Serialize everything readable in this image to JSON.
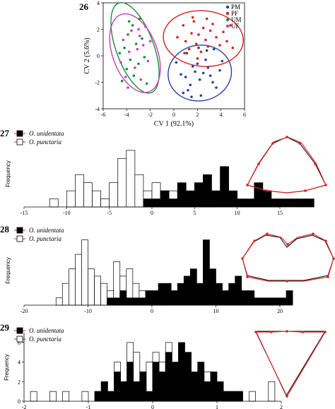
{
  "chart_data": [
    {
      "panel_label": "26",
      "type": "scatter",
      "xlabel": "CV 1 (92.1%)",
      "ylabel": "CV 2 (5.6%)",
      "xlim": [
        -6,
        6
      ],
      "ylim": [
        -4,
        4
      ],
      "xticks": [
        "-6",
        "-4",
        "-2",
        "0",
        "2",
        "4",
        "6"
      ],
      "yticks": [
        "-4",
        "-2",
        "0",
        "2",
        "4"
      ],
      "legend_position": "top-right",
      "series": [
        {
          "name": "PM",
          "color": "#1f3fa8",
          "points": [
            [
              0.2,
              -0.5
            ],
            [
              0.6,
              -1.4
            ],
            [
              1.0,
              -1.6
            ],
            [
              1.2,
              -2.6
            ],
            [
              1.4,
              -2.2
            ],
            [
              1.6,
              -0.8
            ],
            [
              1.8,
              -1.2
            ],
            [
              2.0,
              -0.6
            ],
            [
              2.2,
              -1.8
            ],
            [
              2.5,
              -1.3
            ],
            [
              2.7,
              -0.3
            ],
            [
              2.9,
              -0.9
            ],
            [
              3.1,
              -1.5
            ],
            [
              3.3,
              -2.0
            ],
            [
              3.6,
              -2.4
            ],
            [
              3.9,
              -1.1
            ],
            [
              4.1,
              -0.4
            ],
            [
              2.3,
              -3.0
            ],
            [
              1.5,
              -3.1
            ],
            [
              0.8,
              -2.8
            ],
            [
              2.8,
              0.4
            ],
            [
              3.4,
              0.5
            ],
            [
              1.1,
              0.2
            ],
            [
              2.1,
              0.6
            ]
          ]
        },
        {
          "name": "PF",
          "color": "#d42020",
          "points": [
            [
              0.3,
              1.4
            ],
            [
              0.8,
              2.3
            ],
            [
              1.0,
              1.1
            ],
            [
              1.3,
              0.5
            ],
            [
              1.5,
              1.7
            ],
            [
              1.7,
              2.6
            ],
            [
              1.9,
              0.9
            ],
            [
              2.1,
              1.6
            ],
            [
              2.3,
              0.3
            ],
            [
              2.5,
              2.1
            ],
            [
              2.7,
              1.2
            ],
            [
              2.9,
              0.7
            ],
            [
              3.1,
              1.9
            ],
            [
              3.3,
              2.4
            ],
            [
              3.6,
              1.4
            ],
            [
              3.9,
              0.8
            ],
            [
              4.2,
              1.8
            ],
            [
              4.5,
              1.1
            ],
            [
              4.8,
              2.3
            ],
            [
              5.0,
              0.6
            ],
            [
              1.6,
              2.9
            ],
            [
              2.8,
              2.8
            ],
            [
              0.9,
              0.2
            ],
            [
              2.0,
              -0.2
            ]
          ]
        },
        {
          "name": "UM",
          "color": "#1a8a3a",
          "points": [
            [
              -4.4,
              -1.9
            ],
            [
              -4.2,
              0.6
            ],
            [
              -4.0,
              -1.0
            ],
            [
              -3.9,
              1.6
            ],
            [
              -3.7,
              -0.3
            ],
            [
              -3.5,
              2.3
            ],
            [
              -3.4,
              -1.5
            ],
            [
              -3.2,
              0.9
            ],
            [
              -3.0,
              -0.6
            ],
            [
              -2.9,
              2.8
            ],
            [
              -2.7,
              1.3
            ],
            [
              -2.5,
              -0.1
            ],
            [
              -2.3,
              -2.1
            ],
            [
              -3.8,
              2.6
            ],
            [
              -4.6,
              0.2
            ]
          ]
        },
        {
          "name": "UF",
          "color": "#c040c0",
          "points": [
            [
              -4.5,
              -0.5
            ],
            [
              -4.3,
              1.2
            ],
            [
              -4.1,
              -1.6
            ],
            [
              -3.8,
              0.3
            ],
            [
              -3.6,
              1.9
            ],
            [
              -3.3,
              -0.9
            ],
            [
              -3.1,
              0.5
            ],
            [
              -2.9,
              1.5
            ],
            [
              -2.8,
              -1.8
            ],
            [
              -2.6,
              0.8
            ],
            [
              -2.4,
              2.2
            ],
            [
              -2.2,
              -0.4
            ],
            [
              -2.0,
              1.1
            ],
            [
              -3.9,
              -2.4
            ],
            [
              -3.0,
              2.0
            ]
          ]
        }
      ],
      "ellipses": [
        {
          "group": "PM",
          "color": "#1f3fa8",
          "center": [
            2.2,
            -1.3
          ],
          "rx": 2.7,
          "ry": 2.1,
          "angle": -10
        },
        {
          "group": "PF",
          "color": "#d42020",
          "center": [
            2.5,
            1.3
          ],
          "rx": 3.4,
          "ry": 2.1,
          "angle": 5
        },
        {
          "group": "UM",
          "color": "#1a8a3a",
          "center": [
            -3.3,
            0.6
          ],
          "rx": 1.6,
          "ry": 3.6,
          "angle": -20
        },
        {
          "group": "UF",
          "color": "#c040c0",
          "center": [
            -3.3,
            0.2
          ],
          "rx": 1.9,
          "ry": 3.1,
          "angle": -20
        }
      ]
    },
    {
      "panel_label": "27",
      "type": "bar",
      "ylabel": "Frequency",
      "xlim": [
        -15,
        15
      ],
      "ylim": [
        0,
        9
      ],
      "xticks": [
        "-15",
        "-10",
        "-5",
        "0",
        "5",
        "10",
        "15"
      ],
      "bin_width": 1,
      "series": [
        {
          "name": "O. punctaria",
          "fill": "#ffffff",
          "bins_start": -12,
          "values": [
            1,
            0,
            2,
            4,
            3,
            2,
            1,
            3,
            6,
            7,
            4,
            2,
            3,
            2,
            2,
            1,
            1,
            0,
            1,
            0,
            0,
            0,
            0,
            0,
            0
          ]
        },
        {
          "name": "O. unidentata",
          "fill": "#000000",
          "bins_start": -1,
          "values": [
            1,
            1,
            2,
            1,
            3,
            2,
            3,
            4,
            2,
            5,
            2,
            1,
            1,
            3,
            2,
            1,
            1,
            1,
            1,
            1
          ]
        }
      ],
      "legend": [
        "O. unidentata",
        "O. punctaria"
      ]
    },
    {
      "panel_label": "28",
      "type": "bar",
      "ylabel": "Frequency",
      "xlim": [
        -20,
        20
      ],
      "ylim": [
        0,
        11
      ],
      "xticks": [
        "-20",
        "-10",
        "0",
        "10",
        "20"
      ],
      "bin_width": 1,
      "series": [
        {
          "name": "O. punctaria",
          "fill": "#ffffff",
          "bins_start": -15,
          "values": [
            1,
            3,
            5,
            7,
            9,
            5,
            4,
            3,
            2,
            6,
            4,
            5,
            3,
            2,
            1,
            1,
            1,
            0,
            0,
            0,
            0,
            0,
            0,
            0,
            0,
            0,
            0,
            0,
            0,
            0,
            0,
            0,
            0,
            0
          ]
        },
        {
          "name": "O. unidentata",
          "fill": "#000000",
          "bins_start": -7,
          "values": [
            1,
            1,
            2,
            1,
            1,
            1,
            2,
            2,
            3,
            3,
            2,
            3,
            4,
            5,
            3,
            9,
            5,
            3,
            2,
            3,
            4,
            2,
            2,
            1,
            1,
            1,
            1,
            1,
            2
          ]
        }
      ],
      "legend": [
        "O. unidentata",
        "O. punctaria"
      ]
    },
    {
      "panel_label": "29",
      "type": "bar",
      "ylabel": "Frequency",
      "xlim": [
        -2,
        2
      ],
      "ylim": [
        0,
        7
      ],
      "xticks": [
        "-2",
        "-1",
        "0",
        "1",
        "2"
      ],
      "yticks": [
        "0",
        "2",
        "4",
        "6"
      ],
      "bin_width": 0.1,
      "series": [
        {
          "name": "O. punctaria",
          "fill": "#ffffff",
          "bins_start": -1.9,
          "values": [
            1,
            0,
            0,
            1,
            0,
            1,
            0,
            0,
            1,
            0,
            1,
            2,
            1,
            4,
            2,
            6,
            5,
            3,
            4,
            5,
            4,
            6,
            3,
            2,
            2,
            1,
            2,
            3,
            2,
            1,
            1,
            1,
            1,
            0,
            1,
            0,
            0,
            2
          ]
        },
        {
          "name": "O. unidentata",
          "fill": "#000000",
          "bins_start": -0.9,
          "values": [
            1,
            2,
            1,
            3,
            2,
            4,
            2,
            3,
            1,
            4,
            3,
            5,
            4,
            6,
            5,
            3,
            4,
            2,
            3,
            2,
            1,
            1,
            1
          ]
        }
      ],
      "legend": [
        "O. unidentata",
        "O. punctaria"
      ]
    }
  ]
}
